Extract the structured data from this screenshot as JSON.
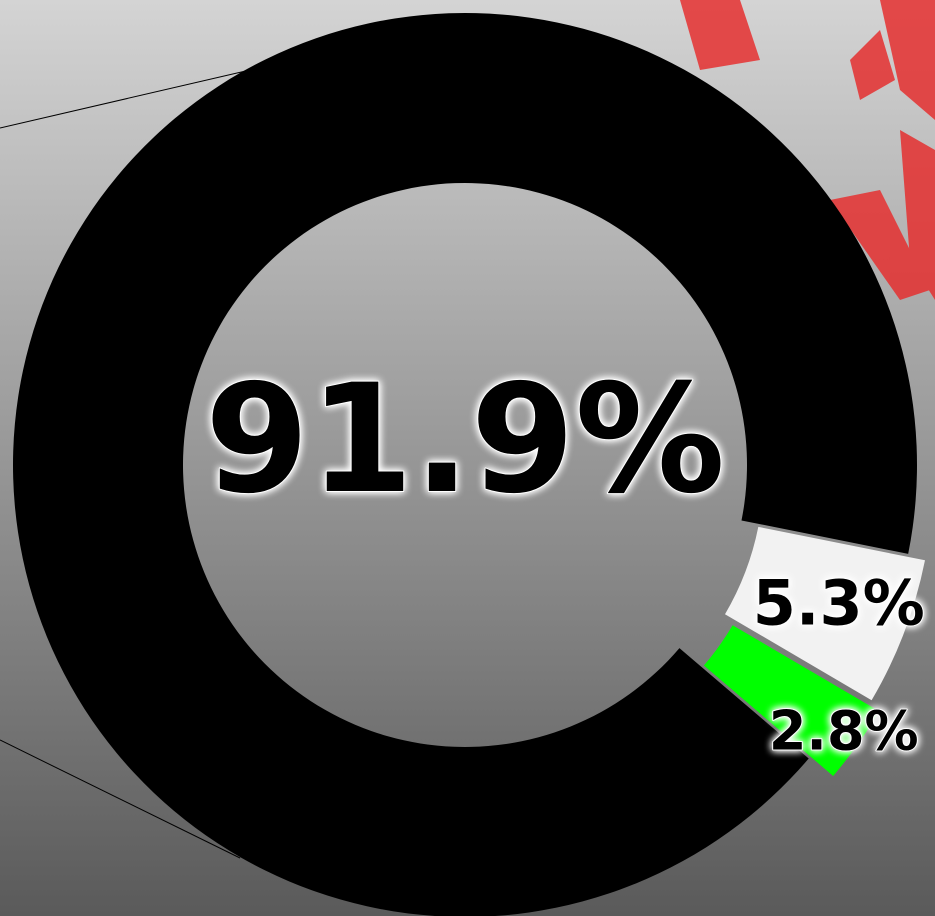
{
  "chart_data": {
    "type": "pie",
    "donut": true,
    "values": [
      91.9,
      5.3,
      2.8
    ],
    "value_labels": [
      "91.9%",
      "5.3%",
      "2.8%"
    ],
    "colors": [
      "#000000",
      "#f2f2f2",
      "#00ff00"
    ]
  }
}
